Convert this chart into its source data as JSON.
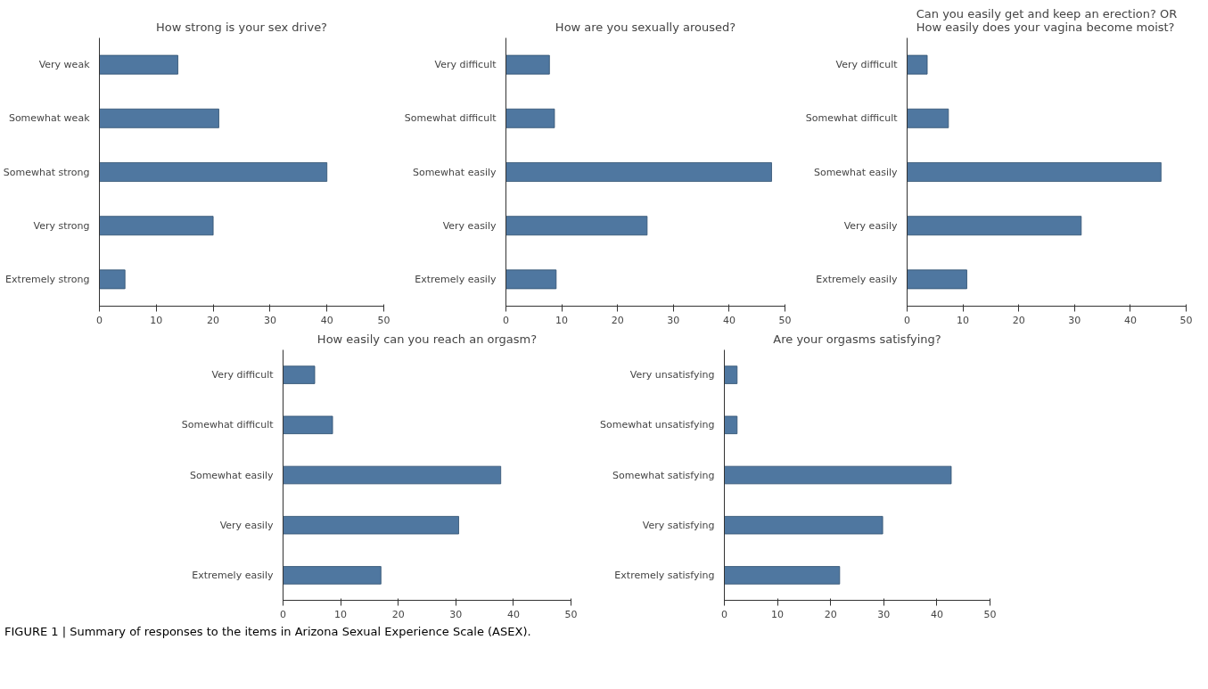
{
  "chart_data": [
    {
      "type": "bar",
      "orientation": "horizontal",
      "title": "How strong is your sex drive?",
      "categories": [
        "Very weak",
        "Somewhat weak",
        "Somewhat strong",
        "Very strong",
        "Extremely strong"
      ],
      "values": [
        13.8,
        21,
        40,
        20,
        4.5
      ],
      "color": "#4f77a0",
      "xlim": [
        0,
        50
      ],
      "xticks": [
        0,
        10,
        20,
        30,
        40,
        50
      ],
      "grid": false
    },
    {
      "type": "bar",
      "orientation": "horizontal",
      "title": "How are you sexually aroused?",
      "categories": [
        "Very difficult",
        "Somewhat difficult",
        "Somewhat easily",
        "Very easily",
        "Extremely easily"
      ],
      "values": [
        7.8,
        8.7,
        47.6,
        25.3,
        9
      ],
      "color": "#4f77a0",
      "xlim": [
        0,
        50
      ],
      "xticks": [
        0,
        10,
        20,
        30,
        40,
        50
      ],
      "grid": false
    },
    {
      "type": "bar",
      "orientation": "horizontal",
      "title": "Can you easily get and keep an erection? OR\nHow easily does your vagina become moist?",
      "categories": [
        "Very difficult",
        "Somewhat difficult",
        "Somewhat easily",
        "Very easily",
        "Extremely easily"
      ],
      "values": [
        3.6,
        7.4,
        45.5,
        31.2,
        10.7
      ],
      "color": "#4f77a0",
      "xlim": [
        0,
        50
      ],
      "xticks": [
        0,
        10,
        20,
        30,
        40,
        50
      ],
      "grid": false
    },
    {
      "type": "bar",
      "orientation": "horizontal",
      "title": "How easily can you reach an orgasm?",
      "categories": [
        "Very difficult",
        "Somewhat difficult",
        "Somewhat easily",
        "Very easily",
        "Extremely easily"
      ],
      "values": [
        5.5,
        8.6,
        37.8,
        30.5,
        17
      ],
      "color": "#4f77a0",
      "xlim": [
        0,
        50
      ],
      "xticks": [
        0,
        10,
        20,
        30,
        40,
        50
      ],
      "grid": false
    },
    {
      "type": "bar",
      "orientation": "horizontal",
      "title": "Are your orgasms satisfying?",
      "categories": [
        "Very unsatisfying",
        "Somewhat unsatisfying",
        "Somewhat satisfying",
        "Very satisfying",
        "Extremely satisfying"
      ],
      "values": [
        2.4,
        2.4,
        42.7,
        29.8,
        21.7
      ],
      "color": "#4f77a0",
      "xlim": [
        0,
        50
      ],
      "xticks": [
        0,
        10,
        20,
        30,
        40,
        50
      ],
      "grid": false,
      "annotations": [
        "FIGURE 1 | Summary of responses to the items in Arizona Sexual Experience Scale (ASEX)."
      ]
    }
  ]
}
